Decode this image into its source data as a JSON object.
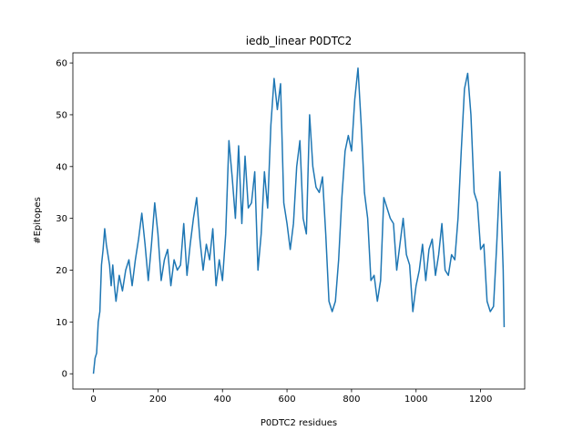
{
  "chart_data": {
    "type": "line",
    "title": "iedb_linear P0DTC2",
    "xlabel": "P0DTC2 residues",
    "ylabel": "#Epitopes",
    "x": [
      0,
      5,
      10,
      15,
      20,
      25,
      30,
      35,
      40,
      50,
      55,
      60,
      65,
      70,
      80,
      90,
      100,
      110,
      120,
      130,
      140,
      150,
      160,
      170,
      180,
      190,
      200,
      210,
      220,
      230,
      240,
      250,
      260,
      270,
      280,
      290,
      300,
      310,
      320,
      330,
      340,
      350,
      360,
      370,
      380,
      390,
      400,
      410,
      420,
      430,
      440,
      450,
      460,
      470,
      480,
      490,
      500,
      510,
      520,
      530,
      540,
      550,
      560,
      570,
      580,
      590,
      600,
      610,
      620,
      630,
      640,
      650,
      660,
      670,
      680,
      690,
      700,
      710,
      720,
      730,
      740,
      750,
      760,
      770,
      780,
      790,
      800,
      810,
      820,
      830,
      840,
      850,
      860,
      870,
      880,
      890,
      900,
      910,
      920,
      930,
      940,
      950,
      960,
      970,
      980,
      990,
      1000,
      1010,
      1020,
      1030,
      1040,
      1050,
      1060,
      1070,
      1080,
      1090,
      1100,
      1110,
      1120,
      1130,
      1140,
      1150,
      1160,
      1170,
      1180,
      1190,
      1200,
      1210,
      1220,
      1230,
      1240,
      1250,
      1260,
      1270,
      1273
    ],
    "values": [
      0,
      3,
      4,
      10,
      12,
      21,
      24,
      28,
      25,
      21,
      17,
      21,
      17,
      14,
      19,
      16,
      20,
      22,
      17,
      22,
      26,
      31,
      25,
      18,
      25,
      33,
      27,
      18,
      22,
      24,
      17,
      22,
      20,
      21,
      29,
      19,
      25,
      30,
      34,
      26,
      20,
      25,
      22,
      28,
      17,
      22,
      18,
      27,
      45,
      38,
      30,
      44,
      29,
      42,
      32,
      33,
      39,
      20,
      27,
      39,
      32,
      48,
      57,
      51,
      56,
      33,
      29,
      24,
      29,
      40,
      45,
      30,
      27,
      50,
      40,
      36,
      35,
      38,
      27,
      14,
      12,
      14,
      22,
      34,
      43,
      46,
      43,
      53,
      59,
      48,
      35,
      30,
      18,
      19,
      14,
      18,
      34,
      32,
      30,
      29,
      20,
      25,
      30,
      23,
      21,
      12,
      17,
      20,
      25,
      18,
      24,
      26,
      19,
      23,
      29,
      20,
      19,
      23,
      22,
      30,
      43,
      55,
      58,
      50,
      35,
      33,
      24,
      25,
      14,
      12,
      13,
      25,
      39,
      20,
      9
    ],
    "color": "#1f77b4",
    "xlim": [
      -63.65,
      1336.65
    ],
    "xticks": [
      0,
      200,
      400,
      600,
      800,
      1000,
      1200
    ],
    "ylim": [
      -2.95,
      61.95
    ],
    "yticks": [
      0,
      10,
      20,
      30,
      40,
      50,
      60
    ]
  }
}
